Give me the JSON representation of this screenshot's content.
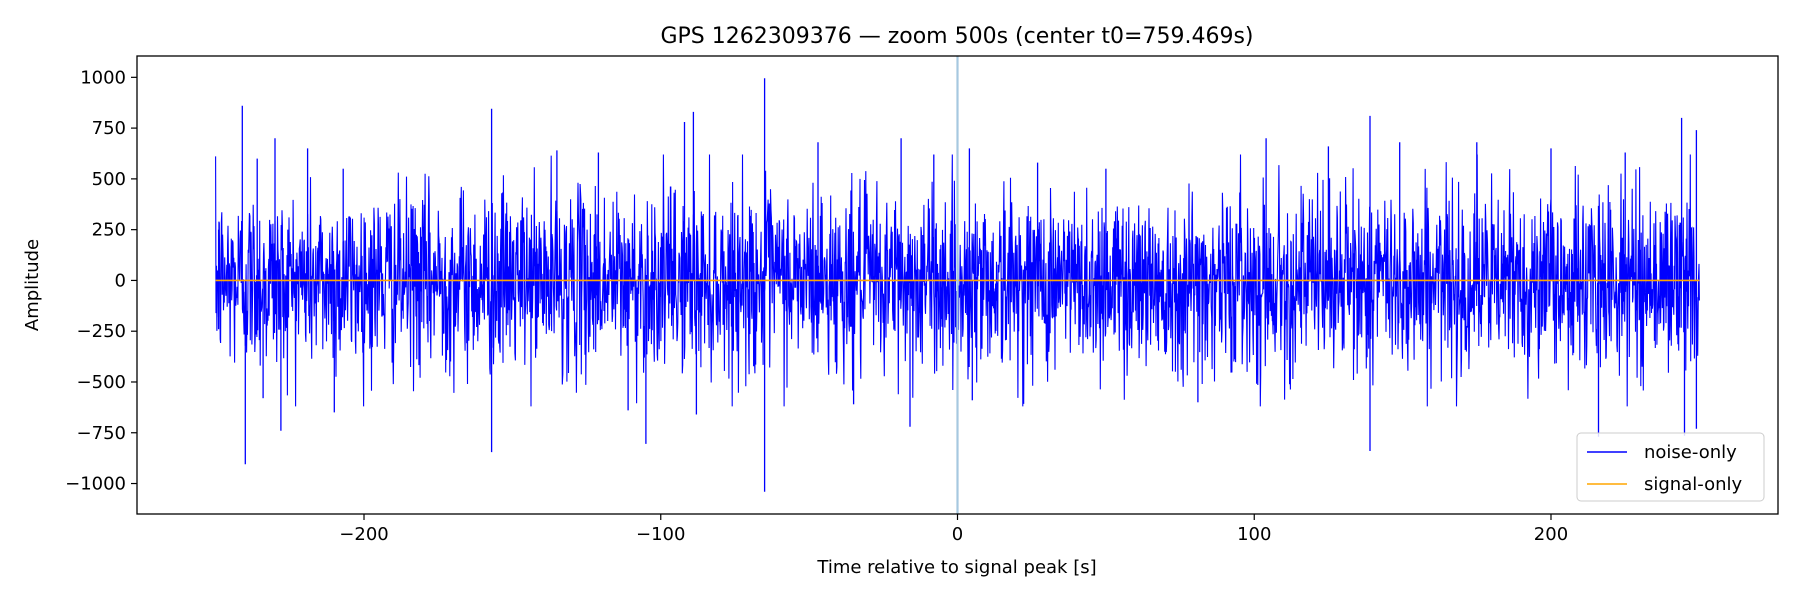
{
  "chart_data": {
    "type": "line",
    "title": "GPS 1262309376 — zoom 500s (center t0=759.469s)",
    "xlabel": "Time relative to signal peak [s]",
    "ylabel": "Amplitude",
    "xlim": [
      -276.5,
      276.5
    ],
    "ylim": [
      -1150,
      1105
    ],
    "x_ticks": [
      -200,
      -100,
      0,
      100,
      200
    ],
    "x_tick_labels": [
      "−200",
      "−100",
      "0",
      "100",
      "200"
    ],
    "y_ticks": [
      1000,
      750,
      500,
      250,
      0,
      -250,
      -500,
      -750,
      -1000
    ],
    "y_tick_labels": [
      "1000",
      "750",
      "500",
      "250",
      "0",
      "−250",
      "−500",
      "−750",
      "−1000"
    ],
    "grid": false,
    "legend_position": "lower-right",
    "vertical_marker": {
      "x": 0,
      "color": "#a6c8e0"
    },
    "series": [
      {
        "name": "noise-only",
        "color": "#0000ff",
        "x_range": [
          -250,
          250
        ],
        "typical_amplitude": 400,
        "peaks": [
          {
            "x": -249,
            "y": 250
          },
          {
            "x": -249,
            "y": -240
          },
          {
            "x": -241,
            "y": 860
          },
          {
            "x": -240,
            "y": -905
          },
          {
            "x": -236,
            "y": 600
          },
          {
            "x": -234,
            "y": -580
          },
          {
            "x": -230,
            "y": 700
          },
          {
            "x": -228,
            "y": -740
          },
          {
            "x": -219,
            "y": 650
          },
          {
            "x": -210,
            "y": -650
          },
          {
            "x": -207,
            "y": 550
          },
          {
            "x": -157,
            "y": 845
          },
          {
            "x": -157,
            "y": -845
          },
          {
            "x": -135,
            "y": 640
          },
          {
            "x": -121,
            "y": 630
          },
          {
            "x": -111,
            "y": -640
          },
          {
            "x": -105,
            "y": -805
          },
          {
            "x": -92,
            "y": 780
          },
          {
            "x": -89,
            "y": 830
          },
          {
            "x": -88,
            "y": -660
          },
          {
            "x": -65,
            "y": 995
          },
          {
            "x": -65,
            "y": -1040
          },
          {
            "x": -47,
            "y": 680
          },
          {
            "x": -35,
            "y": -610
          },
          {
            "x": -19,
            "y": 700
          },
          {
            "x": -16,
            "y": -720
          },
          {
            "x": -8,
            "y": 620
          },
          {
            "x": 4,
            "y": 650
          },
          {
            "x": 5,
            "y": -590
          },
          {
            "x": 27,
            "y": 580
          },
          {
            "x": 50,
            "y": 550
          },
          {
            "x": 81,
            "y": -600
          },
          {
            "x": 104,
            "y": 700
          },
          {
            "x": 125,
            "y": 660
          },
          {
            "x": 139,
            "y": 810
          },
          {
            "x": 139,
            "y": -840
          },
          {
            "x": 149,
            "y": 680
          },
          {
            "x": 175,
            "y": 680
          },
          {
            "x": 200,
            "y": 650
          },
          {
            "x": 216,
            "y": -770
          },
          {
            "x": 225,
            "y": 630
          },
          {
            "x": 244,
            "y": 800
          },
          {
            "x": 245,
            "y": -765
          },
          {
            "x": 249,
            "y": 740
          },
          {
            "x": 249,
            "y": -730
          }
        ]
      },
      {
        "name": "signal-only",
        "color": "#ffa500",
        "x_range": [
          -250,
          250
        ],
        "values": [
          0,
          0
        ]
      }
    ]
  }
}
